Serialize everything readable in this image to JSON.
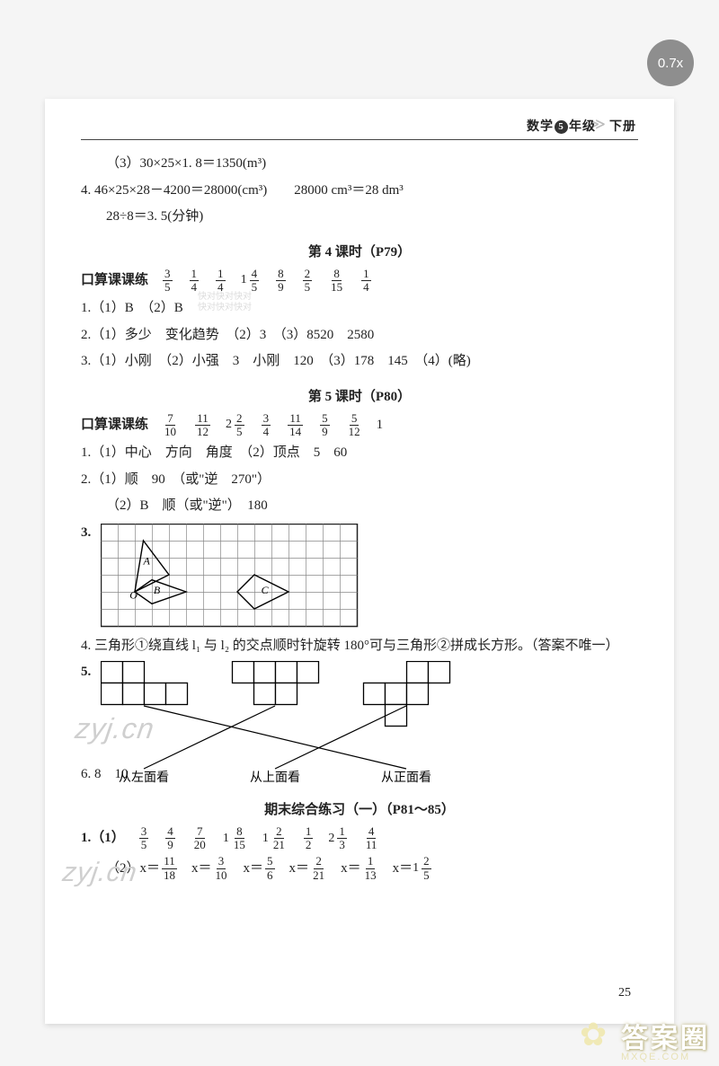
{
  "zoom": "0.7x",
  "header": {
    "subject": "数学",
    "grade_num": "5",
    "grade_suffix": "年级",
    "book": "下册"
  },
  "top": {
    "l1": "（3）30×25×1. 8＝1350(m³)",
    "l2a": "4. 46×25×28－4200＝28000(cm³)",
    "l2b": "28000 cm³＝28 dm³",
    "l3": "28÷8＝3. 5(分钟)"
  },
  "wm1": "快对快对快对\n快对快对快对",
  "s4": {
    "title": "第 4 课时（P79）",
    "label": "口算课课练",
    "fracs": [
      {
        "n": "3",
        "d": "5"
      },
      {
        "n": "1",
        "d": "4"
      },
      {
        "n": "1",
        "d": "4"
      },
      {
        "w": "1",
        "n": "4",
        "d": "5"
      },
      {
        "n": "8",
        "d": "9"
      },
      {
        "n": "2",
        "d": "5"
      },
      {
        "n": "8",
        "d": "15"
      },
      {
        "n": "1",
        "d": "4"
      }
    ],
    "q1": "1.（1）B　（2）B",
    "q2": "2.（1）多少　变化趋势　（2）3　（3）8520　2580",
    "q3": "3.（1）小刚　（2）小强　3　小刚　120　（3）178　145　（4）(略)"
  },
  "s5": {
    "title": "第 5 课时（P80）",
    "label": "口算课课练",
    "fracs": [
      {
        "n": "7",
        "d": "10"
      },
      {
        "n": "11",
        "d": "12"
      },
      {
        "w": "2",
        "n": "2",
        "d": "5"
      },
      {
        "n": "3",
        "d": "4"
      },
      {
        "n": "11",
        "d": "14"
      },
      {
        "n": "5",
        "d": "9"
      },
      {
        "n": "5",
        "d": "12"
      }
    ],
    "tail": "1",
    "q1": "1.（1）中心　方向　角度　（2）顶点　5　60",
    "q2a": "2.（1）顺　90　（或\"逆　270\"）",
    "q2b": "（2）B　顺（或\"逆\"）　180",
    "q3label": "3.",
    "grid": {
      "cols": 15,
      "rows": 6,
      "cell": 19,
      "border": "#222",
      "fill": "#fff",
      "labels": {
        "A": "A",
        "O": "O",
        "B": "B",
        "C": "C"
      },
      "shapes": [
        {
          "type": "poly",
          "fill": "none",
          "stroke": "#000",
          "pts": [
            [
              2,
              4
            ],
            [
              2.5,
              1
            ],
            [
              4,
              3
            ],
            [
              2,
              4
            ]
          ]
        },
        {
          "type": "poly",
          "fill": "none",
          "stroke": "#000",
          "pts": [
            [
              2,
              4
            ],
            [
              3,
              3.3
            ],
            [
              5,
              4
            ],
            [
              3,
              4.7
            ],
            [
              2,
              4
            ]
          ]
        },
        {
          "type": "poly",
          "fill": "none",
          "stroke": "#000",
          "pts": [
            [
              8,
              4
            ],
            [
              9,
              3
            ],
            [
              11,
              4
            ],
            [
              9,
              5
            ],
            [
              8,
              4
            ]
          ]
        }
      ],
      "labelPos": {
        "A": [
          2.5,
          2.4
        ],
        "O": [
          1.7,
          4.4
        ],
        "B": [
          3.1,
          4.1
        ],
        "C": [
          9.4,
          4.1
        ]
      }
    },
    "q4": "4. 三角形①绕直线 l₁ 与 l₂ 的交点顺时针旋转 180°可与三角形②拼成长方形。（答案不唯一）",
    "q5": {
      "label": "5.",
      "cell": 24,
      "border": "#000",
      "nets": [
        [
          [
            0,
            0
          ],
          [
            1,
            0
          ],
          [
            0,
            1
          ],
          [
            1,
            1
          ],
          [
            2,
            1
          ],
          [
            3,
            1
          ]
        ],
        [
          [
            0,
            0
          ],
          [
            1,
            0
          ],
          [
            2,
            0
          ],
          [
            3,
            0
          ],
          [
            1,
            1
          ],
          [
            2,
            1
          ]
        ],
        [
          [
            2,
            0
          ],
          [
            3,
            0
          ],
          [
            0,
            1
          ],
          [
            1,
            1
          ],
          [
            2,
            1
          ],
          [
            1,
            2
          ]
        ]
      ],
      "lines": [
        [
          0,
          2
        ],
        [
          1,
          0
        ],
        [
          2,
          1
        ]
      ],
      "labels": [
        "从左面看",
        "从上面看",
        "从正面看"
      ]
    },
    "q6": "6. 8　10"
  },
  "s6": {
    "title": "期末综合练习（一）（P81～85）",
    "q1label": "1.（1）",
    "q1fracs": [
      {
        "n": "3",
        "d": "5"
      },
      {
        "n": "4",
        "d": "9"
      },
      {
        "n": "7",
        "d": "20"
      },
      {
        "w": "1",
        "n": "8",
        "d": "15"
      },
      {
        "w": "1",
        "n": "2",
        "d": "21"
      },
      {
        "n": "1",
        "d": "2"
      },
      {
        "w": "2",
        "n": "1",
        "d": "3"
      },
      {
        "n": "4",
        "d": "11"
      }
    ],
    "q2items": [
      {
        "pre": "（2）x＝",
        "n": "11",
        "d": "18"
      },
      {
        "pre": "x＝",
        "n": "3",
        "d": "10"
      },
      {
        "pre": "x＝",
        "n": "5",
        "d": "6"
      },
      {
        "pre": "x＝",
        "n": "2",
        "d": "21"
      },
      {
        "pre": "x＝",
        "n": "1",
        "d": "13"
      },
      {
        "pre": "x＝",
        "w": "1",
        "n": "2",
        "d": "5"
      }
    ]
  },
  "page_num": "25",
  "footer": {
    "big": "答案圈",
    "small": "MXQE.COM"
  }
}
